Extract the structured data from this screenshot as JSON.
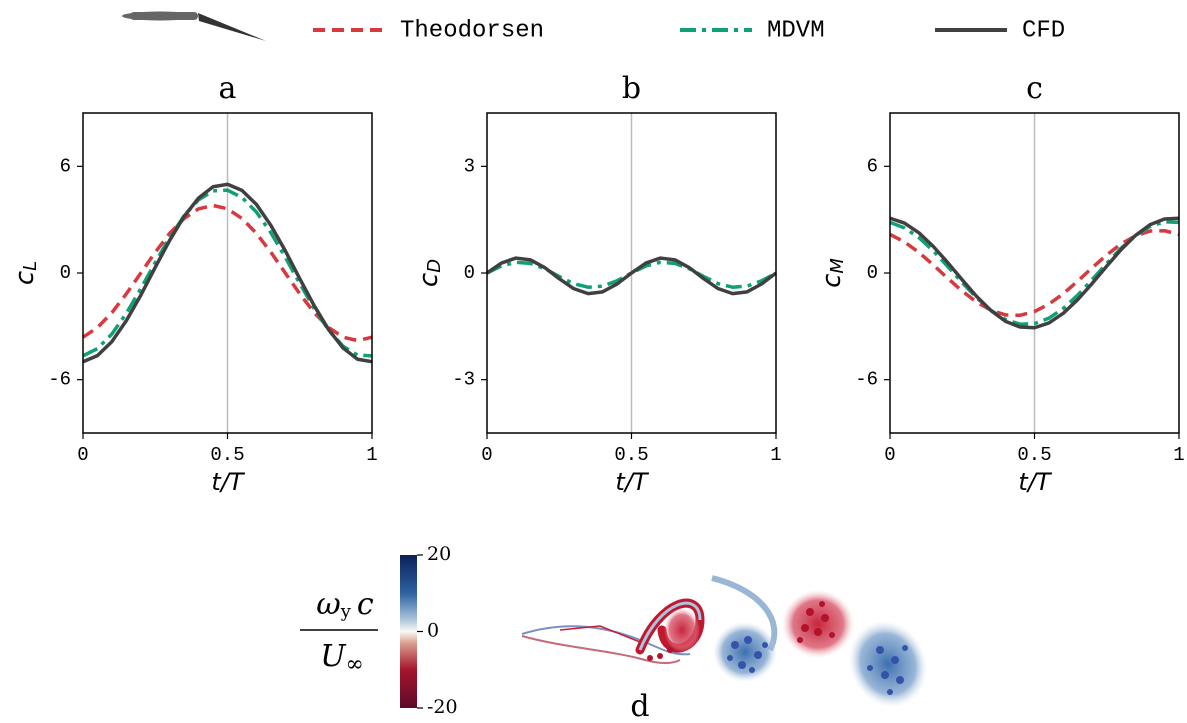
{
  "chart_data": [
    {
      "type": "line",
      "title": "a",
      "xlabel": "t/T",
      "ylabel": {
        "text": "c",
        "subscript": "L"
      },
      "xlim": [
        0,
        1
      ],
      "xticks": [
        0,
        0.5,
        1
      ],
      "ylim": [
        -9,
        9
      ],
      "yticks": [
        -6,
        0,
        6
      ],
      "vline": 0.5,
      "x": [
        0,
        0.05,
        0.1,
        0.15,
        0.2,
        0.25,
        0.3,
        0.35,
        0.4,
        0.45,
        0.5,
        0.55,
        0.6,
        0.65,
        0.7,
        0.75,
        0.8,
        0.85,
        0.9,
        0.95,
        1
      ],
      "series": [
        {
          "name": "Theodorsen",
          "color": "#d8393f",
          "dash": "dashed",
          "values": [
            -3.61,
            -3.07,
            -2.23,
            -1.17,
            0,
            1.17,
            2.23,
            3.07,
            3.61,
            3.8,
            3.61,
            3.07,
            2.23,
            1.17,
            0,
            -1.17,
            -2.23,
            -3.07,
            -3.61,
            -3.8,
            -3.61
          ]
        },
        {
          "name": "MDVM",
          "color": "#0fa077",
          "dash": "dashdot",
          "values": [
            -4.66,
            -4.25,
            -3.43,
            -2.27,
            -0.88,
            0.59,
            2.0,
            3.22,
            4.12,
            4.62,
            4.66,
            4.25,
            3.43,
            2.27,
            0.88,
            -0.59,
            -2.0,
            -3.22,
            -4.12,
            -4.62,
            -4.66
          ]
        },
        {
          "name": "CFD",
          "color": "#404040",
          "dash": "solid",
          "values": [
            -4.99,
            -4.65,
            -3.86,
            -2.68,
            -1.25,
            0.32,
            1.84,
            3.19,
            4.22,
            4.85,
            4.99,
            4.65,
            3.86,
            2.68,
            1.25,
            -0.32,
            -1.84,
            -3.19,
            -4.22,
            -4.85,
            -4.99
          ]
        }
      ]
    },
    {
      "type": "line",
      "title": "b",
      "xlabel": "t/T",
      "ylabel": {
        "text": "c",
        "subscript": "D"
      },
      "xlim": [
        0,
        1
      ],
      "xticks": [
        0,
        0.5,
        1
      ],
      "ylim": [
        -4.5,
        4.5
      ],
      "yticks": [
        -3,
        0,
        3
      ],
      "vline": 0.5,
      "x": [
        0,
        0.05,
        0.1,
        0.15,
        0.2,
        0.25,
        0.3,
        0.35,
        0.4,
        0.45,
        0.5,
        0.55,
        0.6,
        0.65,
        0.7,
        0.75,
        0.8,
        0.85,
        0.9,
        0.95,
        1
      ],
      "series": [
        {
          "name": "MDVM",
          "color": "#0fa077",
          "dash": "dashdot",
          "values": [
            0,
            0.2,
            0.3,
            0.27,
            0.12,
            -0.1,
            -0.3,
            -0.4,
            -0.37,
            -0.22,
            0,
            0.2,
            0.3,
            0.27,
            0.12,
            -0.1,
            -0.3,
            -0.4,
            -0.37,
            -0.22,
            0
          ]
        },
        {
          "name": "CFD",
          "color": "#404040",
          "dash": "solid",
          "values": [
            0,
            0.28,
            0.42,
            0.37,
            0.15,
            -0.16,
            -0.44,
            -0.58,
            -0.53,
            -0.31,
            0,
            0.28,
            0.42,
            0.37,
            0.15,
            -0.16,
            -0.44,
            -0.58,
            -0.53,
            -0.31,
            0
          ]
        }
      ]
    },
    {
      "type": "line",
      "title": "c",
      "xlabel": "t/T",
      "ylabel": {
        "text": "c",
        "subscript": "M"
      },
      "xlim": [
        0,
        1
      ],
      "xticks": [
        0,
        0.5,
        1
      ],
      "ylim": [
        -9,
        9
      ],
      "yticks": [
        -6,
        0,
        6
      ],
      "vline": 0.5,
      "x": [
        0,
        0.05,
        0.1,
        0.15,
        0.2,
        0.25,
        0.3,
        0.35,
        0.4,
        0.45,
        0.5,
        0.55,
        0.6,
        0.65,
        0.7,
        0.75,
        0.8,
        0.85,
        0.9,
        0.95,
        1
      ],
      "series": [
        {
          "name": "Theodorsen",
          "color": "#d8393f",
          "dash": "dashed",
          "values": [
            2.17,
            1.75,
            1.16,
            0.45,
            -0.3,
            -1.02,
            -1.64,
            -2.1,
            -2.36,
            -2.38,
            -2.17,
            -1.75,
            -1.16,
            -0.45,
            0.3,
            1.02,
            1.64,
            2.1,
            2.36,
            2.38,
            2.17
          ]
        },
        {
          "name": "MDVM",
          "color": "#0fa077",
          "dash": "dashdot",
          "values": [
            2.85,
            2.54,
            1.99,
            1.24,
            0.36,
            -0.54,
            -1.4,
            -2.11,
            -2.62,
            -2.88,
            -2.85,
            -2.54,
            -1.99,
            -1.24,
            -0.36,
            0.54,
            1.4,
            2.11,
            2.62,
            2.88,
            2.85
          ]
        },
        {
          "name": "CFD",
          "color": "#404040",
          "dash": "solid",
          "values": [
            3.08,
            2.81,
            2.26,
            1.49,
            0.58,
            -0.39,
            -1.32,
            -2.12,
            -2.72,
            -3.04,
            -3.08,
            -2.81,
            -2.26,
            -1.49,
            -0.58,
            0.39,
            1.32,
            2.12,
            2.72,
            3.04,
            3.08
          ]
        }
      ]
    },
    {
      "type": "colorbar",
      "title": "d",
      "label": {
        "numerator": "ω",
        "numerator_subscript": "y",
        "numerator_tail": "c",
        "denominator": "U",
        "denominator_subscript": "∞"
      },
      "clim": [
        -20,
        20
      ],
      "cticks": [
        -20,
        0,
        20
      ]
    }
  ]
}
